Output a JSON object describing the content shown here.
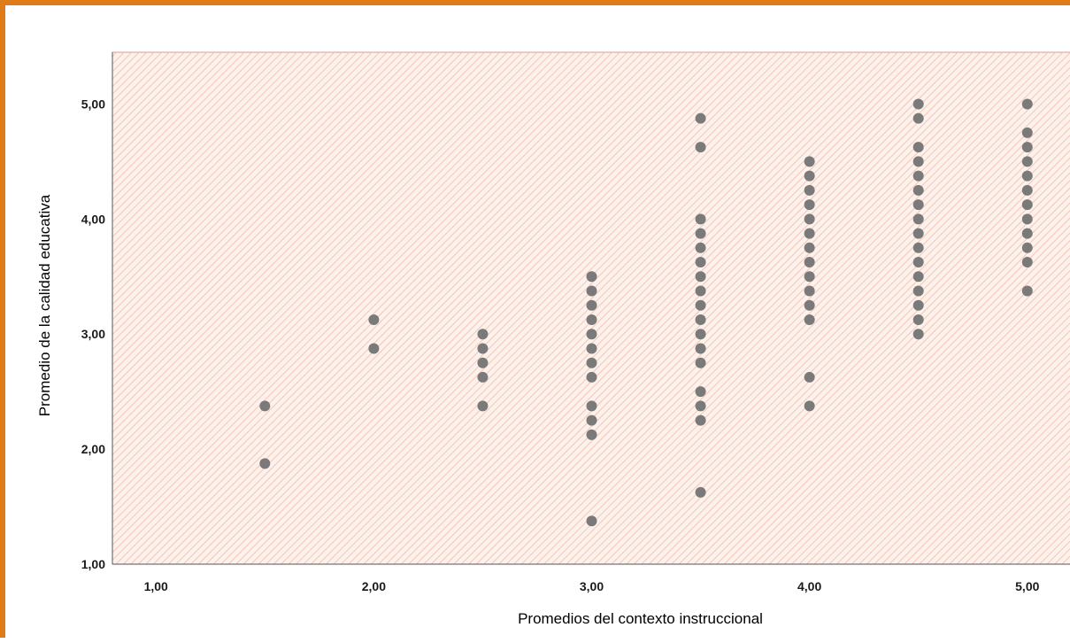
{
  "chart_data": {
    "type": "scatter",
    "title": "",
    "xlabel": "Promedios del contexto instruccional",
    "ylabel": "Promedio de la calidad educativa",
    "xlim": [
      0.8,
      5.2
    ],
    "ylim": [
      1.0,
      5.45
    ],
    "x_ticks": [
      1.0,
      2.0,
      3.0,
      4.0,
      5.0
    ],
    "x_tick_labels": [
      "1,00",
      "2,00",
      "3,00",
      "4,00",
      "5,00"
    ],
    "y_ticks": [
      1.0,
      2.0,
      3.0,
      4.0,
      5.0
    ],
    "y_tick_labels": [
      "1,00",
      "2,00",
      "3,00",
      "4,00",
      "5,00"
    ],
    "grid": false,
    "colors": {
      "point": "#7a7a7a",
      "plot_background": "#fdf1ec",
      "hatch": "#f3c5b6",
      "plot_border": "#d49d8f",
      "frame": "#e07b1a"
    },
    "points": [
      {
        "x": 1.5,
        "y": 2.375
      },
      {
        "x": 1.5,
        "y": 1.875
      },
      {
        "x": 2.0,
        "y": 3.125
      },
      {
        "x": 2.0,
        "y": 2.875
      },
      {
        "x": 2.5,
        "y": 3.0
      },
      {
        "x": 2.5,
        "y": 2.875
      },
      {
        "x": 2.5,
        "y": 2.75
      },
      {
        "x": 2.5,
        "y": 2.625
      },
      {
        "x": 2.5,
        "y": 2.375
      },
      {
        "x": 3.0,
        "y": 3.5
      },
      {
        "x": 3.0,
        "y": 3.375
      },
      {
        "x": 3.0,
        "y": 3.25
      },
      {
        "x": 3.0,
        "y": 3.125
      },
      {
        "x": 3.0,
        "y": 3.0
      },
      {
        "x": 3.0,
        "y": 2.875
      },
      {
        "x": 3.0,
        "y": 2.75
      },
      {
        "x": 3.0,
        "y": 2.625
      },
      {
        "x": 3.0,
        "y": 2.375
      },
      {
        "x": 3.0,
        "y": 2.25
      },
      {
        "x": 3.0,
        "y": 2.125
      },
      {
        "x": 3.0,
        "y": 1.375
      },
      {
        "x": 3.5,
        "y": 4.875
      },
      {
        "x": 3.5,
        "y": 4.625
      },
      {
        "x": 3.5,
        "y": 4.0
      },
      {
        "x": 3.5,
        "y": 3.875
      },
      {
        "x": 3.5,
        "y": 3.75
      },
      {
        "x": 3.5,
        "y": 3.625
      },
      {
        "x": 3.5,
        "y": 3.5
      },
      {
        "x": 3.5,
        "y": 3.375
      },
      {
        "x": 3.5,
        "y": 3.25
      },
      {
        "x": 3.5,
        "y": 3.125
      },
      {
        "x": 3.5,
        "y": 3.0
      },
      {
        "x": 3.5,
        "y": 2.875
      },
      {
        "x": 3.5,
        "y": 2.75
      },
      {
        "x": 3.5,
        "y": 2.5
      },
      {
        "x": 3.5,
        "y": 2.375
      },
      {
        "x": 3.5,
        "y": 2.25
      },
      {
        "x": 3.5,
        "y": 1.625
      },
      {
        "x": 4.0,
        "y": 4.5
      },
      {
        "x": 4.0,
        "y": 4.375
      },
      {
        "x": 4.0,
        "y": 4.25
      },
      {
        "x": 4.0,
        "y": 4.125
      },
      {
        "x": 4.0,
        "y": 4.0
      },
      {
        "x": 4.0,
        "y": 3.875
      },
      {
        "x": 4.0,
        "y": 3.75
      },
      {
        "x": 4.0,
        "y": 3.625
      },
      {
        "x": 4.0,
        "y": 3.5
      },
      {
        "x": 4.0,
        "y": 3.375
      },
      {
        "x": 4.0,
        "y": 3.25
      },
      {
        "x": 4.0,
        "y": 3.125
      },
      {
        "x": 4.0,
        "y": 2.625
      },
      {
        "x": 4.0,
        "y": 2.375
      },
      {
        "x": 4.5,
        "y": 5.0
      },
      {
        "x": 4.5,
        "y": 4.875
      },
      {
        "x": 4.5,
        "y": 4.625
      },
      {
        "x": 4.5,
        "y": 4.5
      },
      {
        "x": 4.5,
        "y": 4.375
      },
      {
        "x": 4.5,
        "y": 4.25
      },
      {
        "x": 4.5,
        "y": 4.125
      },
      {
        "x": 4.5,
        "y": 4.0
      },
      {
        "x": 4.5,
        "y": 3.875
      },
      {
        "x": 4.5,
        "y": 3.75
      },
      {
        "x": 4.5,
        "y": 3.625
      },
      {
        "x": 4.5,
        "y": 3.5
      },
      {
        "x": 4.5,
        "y": 3.375
      },
      {
        "x": 4.5,
        "y": 3.25
      },
      {
        "x": 4.5,
        "y": 3.125
      },
      {
        "x": 4.5,
        "y": 3.0
      },
      {
        "x": 5.0,
        "y": 5.0
      },
      {
        "x": 5.0,
        "y": 4.75
      },
      {
        "x": 5.0,
        "y": 4.625
      },
      {
        "x": 5.0,
        "y": 4.5
      },
      {
        "x": 5.0,
        "y": 4.375
      },
      {
        "x": 5.0,
        "y": 4.25
      },
      {
        "x": 5.0,
        "y": 4.125
      },
      {
        "x": 5.0,
        "y": 4.0
      },
      {
        "x": 5.0,
        "y": 3.875
      },
      {
        "x": 5.0,
        "y": 3.75
      },
      {
        "x": 5.0,
        "y": 3.625
      },
      {
        "x": 5.0,
        "y": 3.375
      }
    ]
  }
}
